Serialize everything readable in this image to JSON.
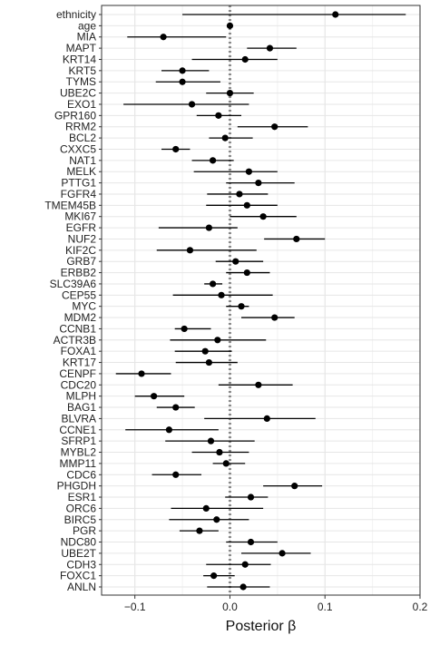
{
  "chart_data": {
    "type": "scatter",
    "subtype": "forest-plot",
    "xlabel": "Posterior  β",
    "ylabel": "",
    "xlim": [
      -0.135,
      0.2
    ],
    "xticks": [
      -0.1,
      0.0,
      0.1,
      0.2
    ],
    "xtick_labels": [
      "−0.1",
      "0.0",
      "0.1",
      "0.2"
    ],
    "grid": true,
    "reference_line": {
      "x": 0,
      "style": "dotted",
      "color": "#888888"
    },
    "colors": {
      "point": "#000000",
      "interval": "#000000",
      "grid_major": "#e6e6e6",
      "grid_minor": "#f2f2f2",
      "panel_border": "#333333",
      "background": "#ffffff"
    },
    "series": [
      {
        "points": [
          {
            "label": "ethnicity",
            "estimate": 0.111,
            "lower": -0.05,
            "upper": 0.185
          },
          {
            "label": "age",
            "estimate": 0.0,
            "lower": -0.002,
            "upper": 0.002
          },
          {
            "label": "MIA",
            "estimate": -0.07,
            "lower": -0.108,
            "upper": -0.004
          },
          {
            "label": "MAPT",
            "estimate": 0.042,
            "lower": 0.018,
            "upper": 0.07
          },
          {
            "label": "KRT14",
            "estimate": 0.016,
            "lower": -0.04,
            "upper": 0.05
          },
          {
            "label": "KRT5",
            "estimate": -0.05,
            "lower": -0.072,
            "upper": -0.022
          },
          {
            "label": "TYMS",
            "estimate": -0.05,
            "lower": -0.078,
            "upper": -0.01
          },
          {
            "label": "UBE2C",
            "estimate": 0.0,
            "lower": -0.025,
            "upper": 0.025
          },
          {
            "label": "EXO1",
            "estimate": -0.04,
            "lower": -0.112,
            "upper": 0.02
          },
          {
            "label": "GPR160",
            "estimate": -0.012,
            "lower": -0.035,
            "upper": 0.012
          },
          {
            "label": "RRM2",
            "estimate": 0.047,
            "lower": 0.008,
            "upper": 0.082
          },
          {
            "label": "BCL2",
            "estimate": -0.005,
            "lower": -0.022,
            "upper": 0.024
          },
          {
            "label": "CXXC5",
            "estimate": -0.057,
            "lower": -0.072,
            "upper": -0.042
          },
          {
            "label": "NAT1",
            "estimate": -0.018,
            "lower": -0.04,
            "upper": 0.004
          },
          {
            "label": "MELK",
            "estimate": 0.02,
            "lower": -0.038,
            "upper": 0.05
          },
          {
            "label": "PTTG1",
            "estimate": 0.03,
            "lower": -0.004,
            "upper": 0.068
          },
          {
            "label": "FGFR4",
            "estimate": 0.01,
            "lower": -0.024,
            "upper": 0.04
          },
          {
            "label": "TMEM45B",
            "estimate": 0.018,
            "lower": -0.025,
            "upper": 0.05
          },
          {
            "label": "MKI67",
            "estimate": 0.035,
            "lower": 0.0,
            "upper": 0.07
          },
          {
            "label": "EGFR",
            "estimate": -0.022,
            "lower": -0.075,
            "upper": 0.008
          },
          {
            "label": "NUF2",
            "estimate": 0.07,
            "lower": 0.036,
            "upper": 0.1
          },
          {
            "label": "KIF2C",
            "estimate": -0.042,
            "lower": -0.077,
            "upper": 0.028
          },
          {
            "label": "GRB7",
            "estimate": 0.006,
            "lower": -0.015,
            "upper": 0.035
          },
          {
            "label": "ERBB2",
            "estimate": 0.018,
            "lower": -0.004,
            "upper": 0.042
          },
          {
            "label": "SLC39A6",
            "estimate": -0.018,
            "lower": -0.027,
            "upper": -0.008
          },
          {
            "label": "CEP55",
            "estimate": -0.009,
            "lower": -0.06,
            "upper": 0.045
          },
          {
            "label": "MYC",
            "estimate": 0.012,
            "lower": -0.004,
            "upper": 0.02
          },
          {
            "label": "MDM2",
            "estimate": 0.047,
            "lower": 0.012,
            "upper": 0.068
          },
          {
            "label": "CCNB1",
            "estimate": -0.048,
            "lower": -0.058,
            "upper": -0.02
          },
          {
            "label": "ACTR3B",
            "estimate": -0.013,
            "lower": -0.063,
            "upper": 0.038
          },
          {
            "label": "FOXA1",
            "estimate": -0.026,
            "lower": -0.058,
            "upper": 0.002
          },
          {
            "label": "KRT17",
            "estimate": -0.022,
            "lower": -0.057,
            "upper": 0.008
          },
          {
            "label": "CENPF",
            "estimate": -0.093,
            "lower": -0.12,
            "upper": -0.062
          },
          {
            "label": "CDC20",
            "estimate": 0.03,
            "lower": -0.012,
            "upper": 0.066
          },
          {
            "label": "MLPH",
            "estimate": -0.08,
            "lower": -0.1,
            "upper": -0.048
          },
          {
            "label": "BAG1",
            "estimate": -0.057,
            "lower": -0.077,
            "upper": -0.037
          },
          {
            "label": "BLVRA",
            "estimate": 0.039,
            "lower": -0.027,
            "upper": 0.09
          },
          {
            "label": "CCNE1",
            "estimate": -0.064,
            "lower": -0.11,
            "upper": -0.012
          },
          {
            "label": "SFRP1",
            "estimate": -0.02,
            "lower": -0.068,
            "upper": 0.026
          },
          {
            "label": "MYBL2",
            "estimate": -0.011,
            "lower": -0.04,
            "upper": 0.02
          },
          {
            "label": "MMP11",
            "estimate": -0.004,
            "lower": -0.018,
            "upper": 0.016
          },
          {
            "label": "CDC6",
            "estimate": -0.057,
            "lower": -0.082,
            "upper": -0.03
          },
          {
            "label": "PHGDH",
            "estimate": 0.068,
            "lower": 0.035,
            "upper": 0.097
          },
          {
            "label": "ESR1",
            "estimate": 0.022,
            "lower": -0.005,
            "upper": 0.04
          },
          {
            "label": "ORC6",
            "estimate": -0.025,
            "lower": -0.062,
            "upper": 0.035
          },
          {
            "label": "BIRC5",
            "estimate": -0.014,
            "lower": -0.064,
            "upper": 0.02
          },
          {
            "label": "PGR",
            "estimate": -0.032,
            "lower": -0.053,
            "upper": -0.012
          },
          {
            "label": "NDC80",
            "estimate": 0.022,
            "lower": -0.004,
            "upper": 0.05
          },
          {
            "label": "UBE2T",
            "estimate": 0.055,
            "lower": 0.012,
            "upper": 0.085
          },
          {
            "label": "CDH3",
            "estimate": 0.016,
            "lower": -0.025,
            "upper": 0.043
          },
          {
            "label": "FOXC1",
            "estimate": -0.017,
            "lower": -0.028,
            "upper": 0.005
          },
          {
            "label": "ANLN",
            "estimate": 0.014,
            "lower": -0.024,
            "upper": 0.042
          }
        ]
      }
    ]
  }
}
